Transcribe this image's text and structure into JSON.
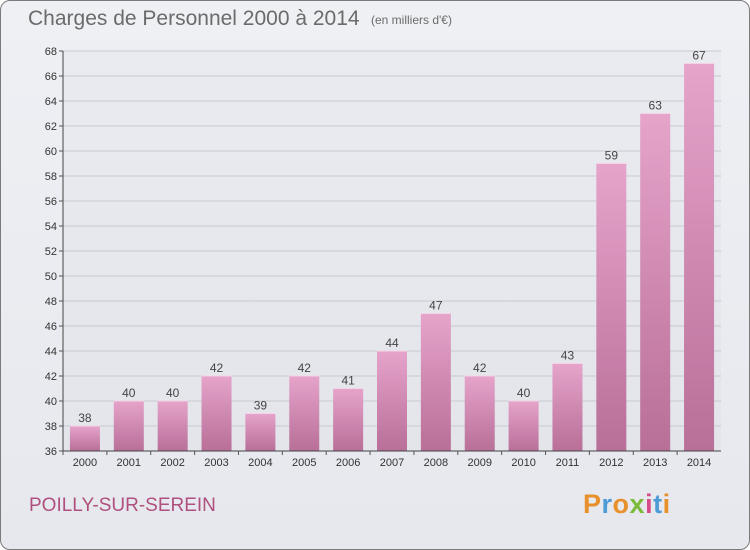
{
  "header": {
    "title": "Charges de Personnel 2000 à 2014",
    "subtitle": "(en milliers d'€)"
  },
  "footer": {
    "commune": "POILLY-SUR-SEREIN",
    "logo_text": "Proxiti",
    "logo_colors": [
      "#e8912c",
      "#4f9bd6",
      "#e8912c",
      "#7cbb3a",
      "#d84b8a",
      "#4f9bd6",
      "#e8912c"
    ]
  },
  "chart_data": {
    "type": "bar",
    "title": "Charges de Personnel 2000 à 2014",
    "subtitle": "(en milliers d'€)",
    "xlabel": "",
    "ylabel": "",
    "categories": [
      "2000",
      "2001",
      "2002",
      "2003",
      "2004",
      "2005",
      "2006",
      "2007",
      "2008",
      "2009",
      "2010",
      "2011",
      "2012",
      "2013",
      "2014"
    ],
    "values": [
      38,
      40,
      40,
      42,
      39,
      42,
      41,
      44,
      47,
      42,
      40,
      43,
      59,
      63,
      67
    ],
    "ylim": [
      36,
      68
    ],
    "yticks": [
      36,
      38,
      40,
      42,
      44,
      46,
      48,
      50,
      52,
      54,
      56,
      58,
      60,
      62,
      64,
      66,
      68
    ],
    "grid": true,
    "bar_color_top": "#e6a4cb",
    "bar_color_bottom": "#b86f98"
  }
}
